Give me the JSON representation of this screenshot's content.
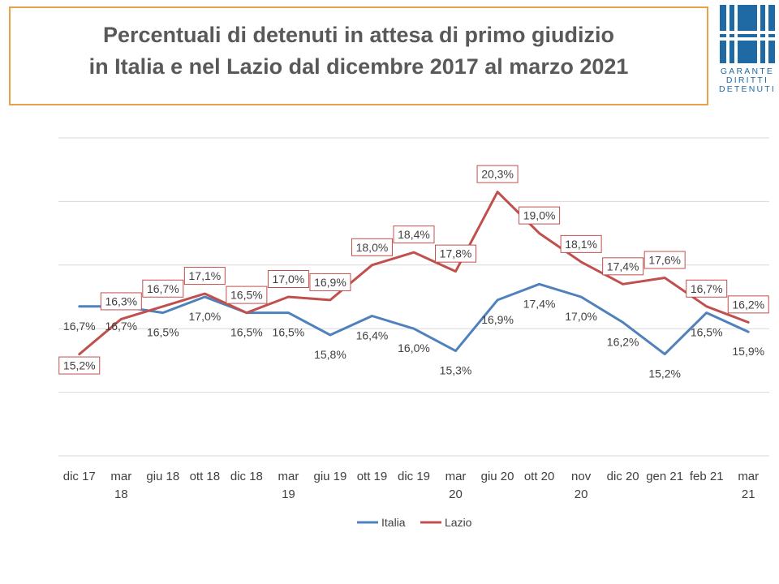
{
  "header": {
    "title_line1": "Percentuali di detenuti in attesa di primo giudizio",
    "title_line2": "in Italia e nel Lazio dal dicembre 2017 al marzo 2021"
  },
  "logo": {
    "icon": "garante-logo-icon",
    "line1": "GARANTE",
    "line2": "DIRITTI",
    "line3": "DETENUTI",
    "color": "#1f6aa5"
  },
  "chart_data": {
    "type": "line",
    "title": "",
    "xlabel": "",
    "ylabel": "",
    "categories": [
      [
        "dic 17"
      ],
      [
        "mar",
        "18"
      ],
      [
        "giu 18"
      ],
      [
        "ott 18"
      ],
      [
        "dic 18"
      ],
      [
        "mar",
        "19"
      ],
      [
        "giu 19"
      ],
      [
        "ott 19"
      ],
      [
        "dic 19"
      ],
      [
        "mar",
        "20"
      ],
      [
        "giu 20"
      ],
      [
        "ott 20"
      ],
      [
        "nov",
        "20"
      ],
      [
        "dic 20"
      ],
      [
        "gen 21"
      ],
      [
        "feb 21"
      ],
      [
        "mar",
        "21"
      ]
    ],
    "ylim": [
      12,
      22
    ],
    "grid": true,
    "legend_position": "bottom",
    "series": [
      {
        "name": "Italia",
        "color": "#4f81bd",
        "values": [
          16.7,
          16.7,
          16.5,
          17.0,
          16.5,
          16.5,
          15.8,
          16.4,
          16.0,
          15.3,
          16.9,
          17.4,
          17.0,
          16.2,
          15.2,
          16.5,
          15.9
        ],
        "labels": [
          "16,7%",
          "16,7%",
          "16,5%",
          "17,0%",
          "16,5%",
          "16,5%",
          "15,8%",
          "16,4%",
          "16,0%",
          "15,3%",
          "16,9%",
          "17,4%",
          "17,0%",
          "16,2%",
          "15,2%",
          "16,5%",
          "15,9%"
        ]
      },
      {
        "name": "Lazio",
        "color": "#c0504d",
        "values": [
          15.2,
          16.3,
          16.7,
          17.1,
          16.5,
          17.0,
          16.9,
          18.0,
          18.4,
          17.8,
          20.3,
          19.0,
          18.1,
          17.4,
          17.6,
          16.7,
          16.2
        ],
        "labels": [
          "15,2%",
          "16,3%",
          "16,7%",
          "17,1%",
          "16,5%",
          "17,0%",
          "16,9%",
          "18,0%",
          "18,4%",
          "17,8%",
          "20,3%",
          "19,0%",
          "18,1%",
          "17,4%",
          "17,6%",
          "16,7%",
          "16,2%"
        ]
      }
    ]
  }
}
